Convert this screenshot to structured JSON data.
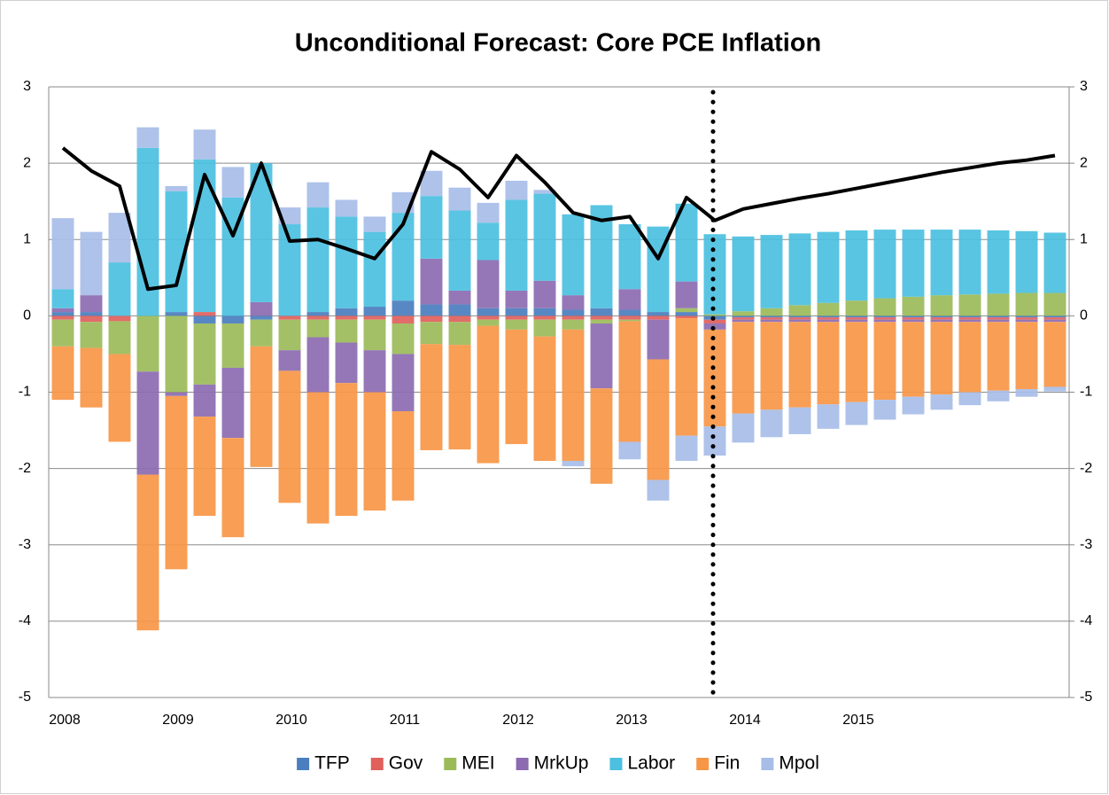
{
  "chart_data": {
    "type": "bar",
    "title": "Unconditional Forecast: Core PCE Inflation",
    "categories": [
      "2008",
      null,
      null,
      null,
      "2009",
      null,
      null,
      null,
      "2010",
      null,
      null,
      null,
      "2011",
      null,
      null,
      null,
      "2012",
      null,
      null,
      null,
      "2013",
      null,
      null,
      null,
      "2014",
      null,
      null,
      null,
      "2015",
      null,
      null,
      null,
      null,
      null,
      null,
      null
    ],
    "series": [
      {
        "name": "TFP",
        "color": "#4a7ebf",
        "values": [
          0.05,
          0.05,
          0,
          0,
          0.05,
          -0.1,
          -0.1,
          -0.05,
          0,
          0.05,
          0.1,
          0.12,
          0.2,
          0.15,
          0.15,
          0.1,
          0.1,
          0.1,
          0.08,
          0.1,
          0.08,
          0.05,
          0.05,
          -0.05,
          -0.02,
          -0.02,
          -0.02,
          -0.02,
          -0.02,
          -0.02,
          -0.02,
          -0.02,
          -0.02,
          -0.02,
          -0.02,
          -0.02
        ]
      },
      {
        "name": "Gov",
        "color": "#e0605c",
        "values": [
          -0.05,
          -0.08,
          -0.07,
          0,
          0,
          0.05,
          0,
          0,
          -0.05,
          -0.05,
          -0.05,
          -0.05,
          -0.1,
          -0.08,
          -0.08,
          -0.05,
          -0.05,
          -0.05,
          -0.05,
          -0.05,
          -0.05,
          -0.05,
          -0.03,
          -0.05,
          -0.03,
          -0.03,
          -0.03,
          -0.03,
          -0.03,
          -0.03,
          -0.03,
          -0.03,
          -0.03,
          -0.03,
          -0.03,
          -0.03
        ]
      },
      {
        "name": "MEI",
        "color": "#9bbb59",
        "values": [
          -0.35,
          -0.34,
          -0.43,
          -0.73,
          -1.0,
          -0.8,
          -0.58,
          -0.35,
          -0.4,
          -0.23,
          -0.3,
          -0.4,
          -0.4,
          -0.29,
          -0.3,
          -0.08,
          -0.13,
          -0.22,
          -0.13,
          -0.05,
          -0.02,
          0,
          0.05,
          0.02,
          0.06,
          0.1,
          0.14,
          0.17,
          0.2,
          0.23,
          0.25,
          0.27,
          0.28,
          0.29,
          0.3,
          0.3
        ]
      },
      {
        "name": "MrkUp",
        "color": "#8c6bb1",
        "values": [
          0.05,
          0.22,
          0,
          -1.35,
          -0.05,
          -0.42,
          -0.92,
          0.18,
          -0.27,
          -0.72,
          -0.53,
          -0.55,
          -0.75,
          0.6,
          0.18,
          0.63,
          0.23,
          0.36,
          0.19,
          -0.85,
          0.27,
          -0.52,
          0.35,
          -0.08,
          -0.03,
          -0.03,
          -0.03,
          -0.03,
          -0.03,
          -0.03,
          -0.03,
          -0.03,
          -0.03,
          -0.03,
          -0.03,
          -0.03
        ]
      },
      {
        "name": "Labor",
        "color": "#4bc0df",
        "values": [
          0.25,
          0,
          0.7,
          2.2,
          1.58,
          2.0,
          1.55,
          1.82,
          1.2,
          1.37,
          1.2,
          0.98,
          1.15,
          0.82,
          1.05,
          0.49,
          1.19,
          1.14,
          1.06,
          1.35,
          0.85,
          1.12,
          1.02,
          1.05,
          0.98,
          0.96,
          0.94,
          0.93,
          0.92,
          0.9,
          0.88,
          0.86,
          0.85,
          0.83,
          0.81,
          0.79
        ]
      },
      {
        "name": "Fin",
        "color": "#f79646",
        "values": [
          -0.7,
          -0.78,
          -1.15,
          -2.04,
          -2.27,
          -1.3,
          -1.3,
          -1.58,
          -1.73,
          -1.72,
          -1.74,
          -1.55,
          -1.17,
          -1.39,
          -1.37,
          -1.8,
          -1.5,
          -1.63,
          -1.72,
          -1.25,
          -1.58,
          -1.58,
          -1.54,
          -1.27,
          -1.2,
          -1.15,
          -1.12,
          -1.08,
          -1.05,
          -1.02,
          -0.98,
          -0.95,
          -0.92,
          -0.9,
          -0.88,
          -0.85
        ]
      },
      {
        "name": "Mpol",
        "color": "#a7bde8",
        "values": [
          0.93,
          0.83,
          0.65,
          0.27,
          0.07,
          0.39,
          0.4,
          0,
          0.22,
          0.33,
          0.22,
          0.2,
          0.27,
          0.33,
          0.3,
          0.26,
          0.25,
          0.05,
          -0.07,
          0,
          -0.23,
          -0.27,
          -0.33,
          -0.38,
          -0.38,
          -0.36,
          -0.35,
          -0.32,
          -0.3,
          -0.26,
          -0.23,
          -0.2,
          -0.17,
          -0.14,
          -0.1,
          -0.06
        ]
      }
    ],
    "line": {
      "color": "#000000",
      "values": [
        2.2,
        1.9,
        1.7,
        0.35,
        0.4,
        1.85,
        1.05,
        2.0,
        0.98,
        1.0,
        0.88,
        0.75,
        1.2,
        2.15,
        1.92,
        1.55,
        2.1,
        1.75,
        1.35,
        1.25,
        1.3,
        0.75,
        1.55,
        1.25,
        1.4,
        1.47,
        1.54,
        1.6,
        1.67,
        1.74,
        1.81,
        1.88,
        1.94,
        2.0,
        2.04,
        2.1
      ]
    },
    "ylim": [
      -5,
      3
    ],
    "yticks": [
      -5,
      -4,
      -3,
      -2,
      -1,
      0,
      1,
      2,
      3
    ],
    "y2lim": [
      -5,
      3
    ],
    "y2ticks": [
      -5,
      -4,
      -3,
      -2,
      -1,
      0,
      1,
      2,
      3
    ],
    "grid": true,
    "legend": "bottom"
  }
}
